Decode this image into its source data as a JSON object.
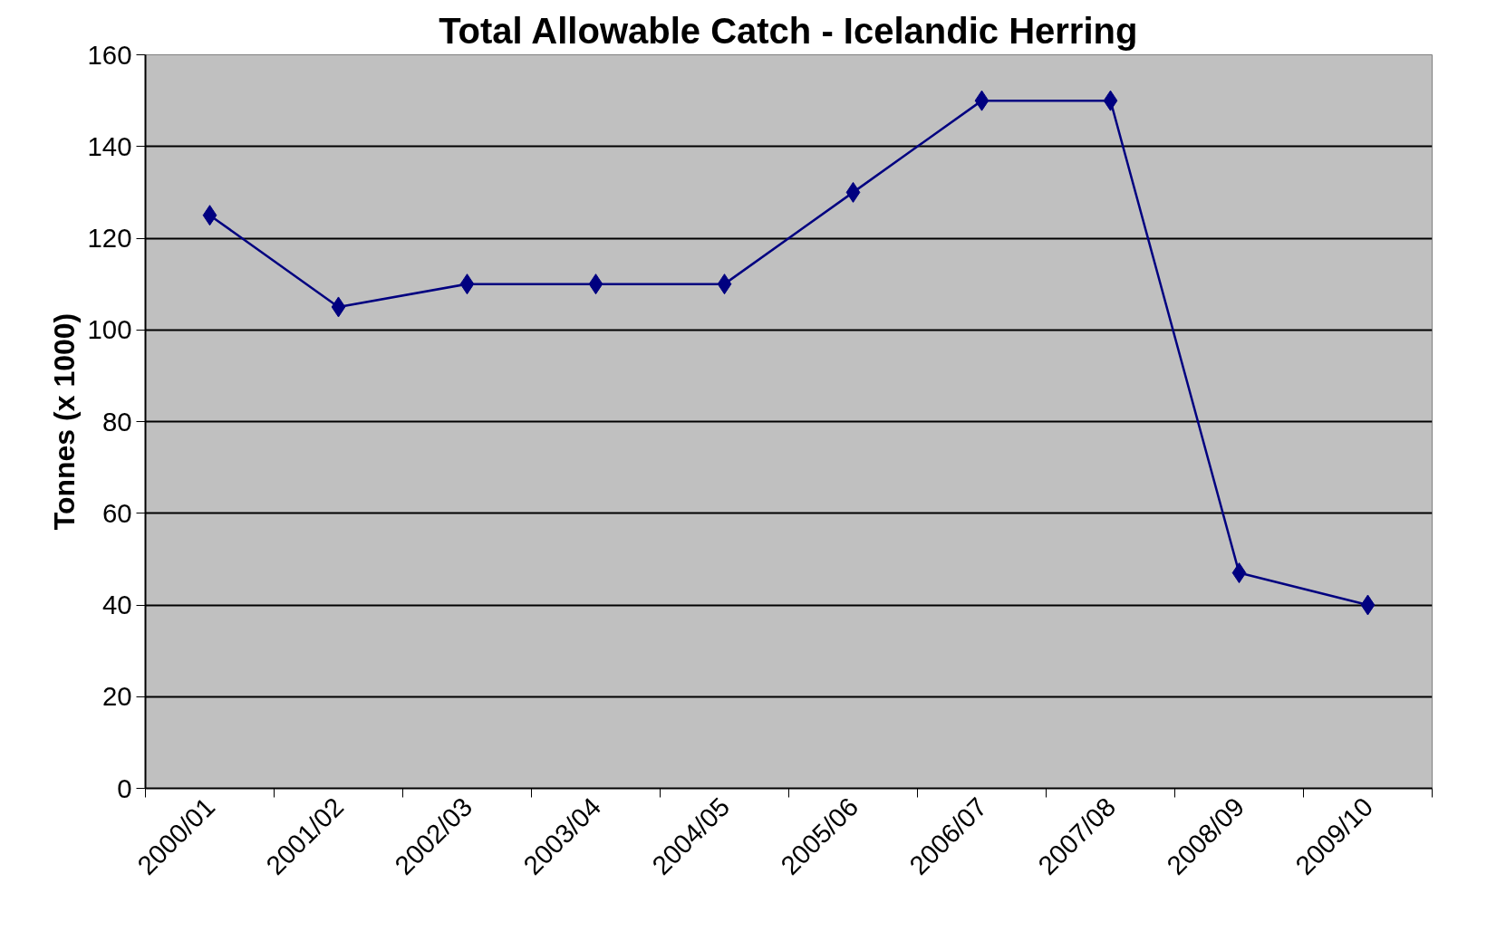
{
  "chart_data": {
    "type": "line",
    "title": "Total Allowable Catch - Icelandic Herring",
    "ylabel": "Tonnes (x 1000)",
    "categories": [
      "2000/01",
      "2001/02",
      "2002/03",
      "2003/04",
      "2004/05",
      "2005/06",
      "2006/07",
      "2007/08",
      "2008/09",
      "2009/10"
    ],
    "series": [
      {
        "color": "#000080",
        "values": [
          125,
          105,
          110,
          110,
          110,
          130,
          150,
          150,
          47,
          40
        ]
      }
    ],
    "ylim": [
      0,
      160
    ],
    "yticks": [
      0,
      20,
      40,
      60,
      80,
      100,
      120,
      140,
      160
    ],
    "grid": "y",
    "marker": "diamond",
    "line_style": "solid"
  }
}
